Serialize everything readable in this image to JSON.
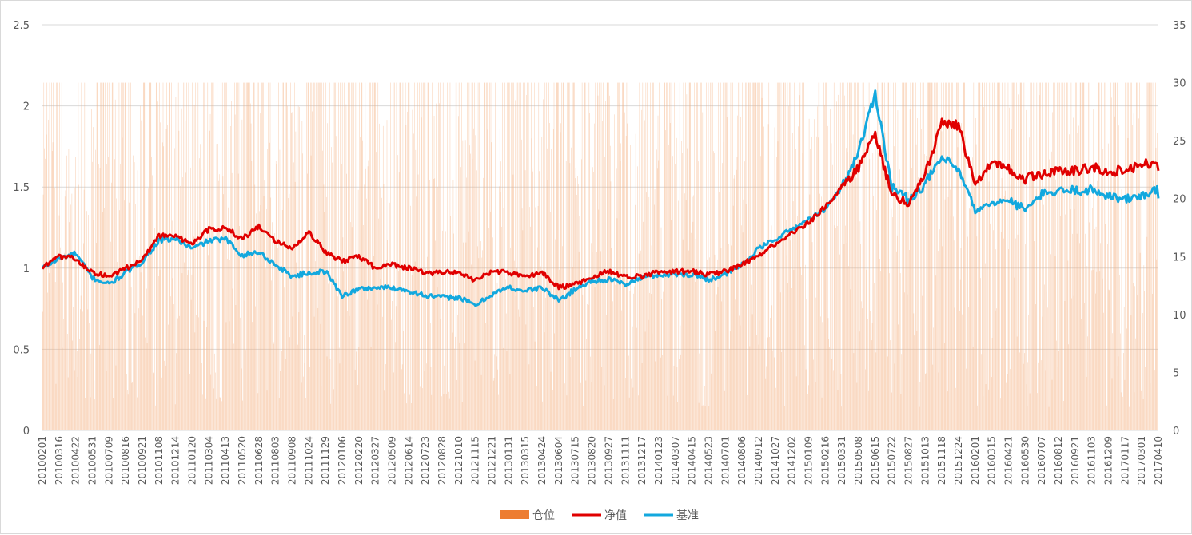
{
  "chart_data": {
    "type": "line+bar",
    "title": "",
    "xlabel": "",
    "ylabel": "",
    "y_left_lim": [
      0,
      2.5
    ],
    "y_left_ticks": [
      "0",
      "0.5",
      "1",
      "1.5",
      "2",
      "2.5"
    ],
    "y_right_lim": [
      0,
      35
    ],
    "y_right_ticks": [
      "0",
      "5",
      "10",
      "15",
      "20",
      "25",
      "30",
      "35"
    ],
    "grid": true,
    "legend_position": "bottom",
    "categories": [
      "20100201",
      "20100316",
      "20100422",
      "20100531",
      "20100709",
      "20100816",
      "20100921",
      "20101108",
      "20101214",
      "20110120",
      "20110304",
      "20110413",
      "20110520",
      "20110628",
      "20110803",
      "20110908",
      "20111024",
      "20111129",
      "20120106",
      "20120220",
      "20120327",
      "20120509",
      "20120614",
      "20120723",
      "20120828",
      "20121010",
      "20121115",
      "20121221",
      "20130131",
      "20130315",
      "20130424",
      "20130604",
      "20130715",
      "20130820",
      "20130927",
      "20131111",
      "20131217",
      "20140123",
      "20140307",
      "20140415",
      "20140523",
      "20140701",
      "20140806",
      "20140912",
      "20141027",
      "20141202",
      "20150109",
      "20150216",
      "20150331",
      "20150508",
      "20150615",
      "20150722",
      "20150827",
      "20151013",
      "20151118",
      "20151224",
      "20160201",
      "20160315",
      "20160421",
      "20160530",
      "20160707",
      "20160812",
      "20160921",
      "20161103",
      "20161209",
      "20170117",
      "20170301",
      "20170410"
    ],
    "series": [
      {
        "name": "仓位",
        "type": "bar",
        "axis": "right",
        "color": "#f4b183",
        "range": [
          0,
          30
        ]
      },
      {
        "name": "净值",
        "type": "line",
        "axis": "left",
        "color": "#e00000",
        "values": [
          1.0,
          1.07,
          1.06,
          0.97,
          0.95,
          1.0,
          1.05,
          1.2,
          1.2,
          1.15,
          1.24,
          1.25,
          1.18,
          1.26,
          1.17,
          1.12,
          1.22,
          1.1,
          1.04,
          1.07,
          1.0,
          1.02,
          1.0,
          0.97,
          0.97,
          0.98,
          0.92,
          0.98,
          0.97,
          0.95,
          0.97,
          0.88,
          0.9,
          0.95,
          0.98,
          0.95,
          0.95,
          0.98,
          0.98,
          0.98,
          0.96,
          0.98,
          1.02,
          1.08,
          1.15,
          1.22,
          1.28,
          1.38,
          1.5,
          1.62,
          1.82,
          1.45,
          1.4,
          1.58,
          1.9,
          1.88,
          1.5,
          1.65,
          1.62,
          1.55,
          1.58,
          1.6,
          1.6,
          1.62,
          1.6,
          1.6,
          1.64,
          1.65
        ]
      },
      {
        "name": "基准",
        "type": "line",
        "axis": "left",
        "color": "#13a8de",
        "values": [
          1.0,
          1.06,
          1.09,
          0.94,
          0.9,
          0.97,
          1.04,
          1.17,
          1.18,
          1.12,
          1.17,
          1.18,
          1.08,
          1.1,
          1.02,
          0.95,
          0.97,
          0.98,
          0.83,
          0.87,
          0.88,
          0.88,
          0.86,
          0.83,
          0.82,
          0.82,
          0.77,
          0.84,
          0.88,
          0.86,
          0.88,
          0.8,
          0.87,
          0.92,
          0.93,
          0.9,
          0.94,
          0.96,
          0.96,
          0.96,
          0.93,
          0.96,
          1.02,
          1.12,
          1.18,
          1.24,
          1.3,
          1.36,
          1.5,
          1.72,
          2.08,
          1.5,
          1.42,
          1.52,
          1.68,
          1.6,
          1.35,
          1.4,
          1.42,
          1.36,
          1.45,
          1.47,
          1.48,
          1.48,
          1.45,
          1.42,
          1.45,
          1.48
        ]
      }
    ]
  }
}
